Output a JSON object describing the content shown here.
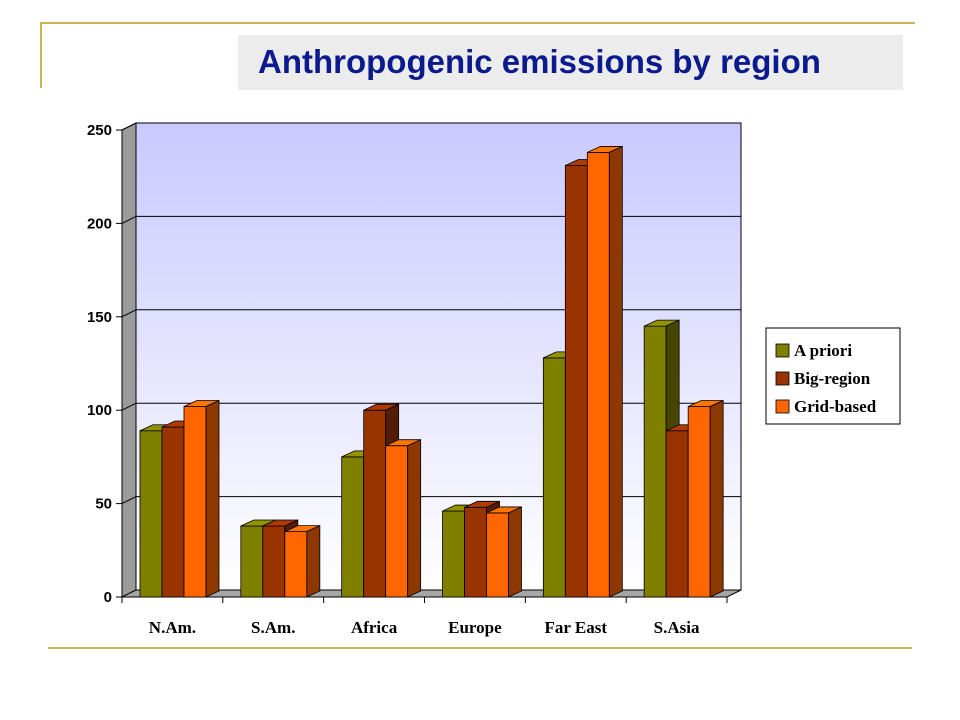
{
  "slide": {
    "title": "Anthropogenic emissions by region"
  },
  "colors": {
    "accent_rule": "#c9b45a",
    "title_text": "#0b1a8c",
    "title_box": "#ececec"
  },
  "chart_data": {
    "type": "bar",
    "style": "3d-clustered",
    "title": "",
    "xlabel": "",
    "ylabel": "",
    "ylim": [
      0,
      250
    ],
    "y_ticks": [
      "0",
      "50",
      "100",
      "150",
      "200",
      "250"
    ],
    "grid": true,
    "legend_position": "right",
    "categories": [
      "N.Am.",
      "S.Am.",
      "Africa",
      "Europe",
      "Far East",
      "S.Asia"
    ],
    "series": [
      {
        "name": "A priori",
        "color": "#808000",
        "values": [
          89,
          38,
          75,
          46,
          128,
          145
        ]
      },
      {
        "name": "Big-region",
        "color": "#993300",
        "values": [
          91,
          38,
          100,
          48,
          231,
          89
        ]
      },
      {
        "name": "Grid-based",
        "color": "#ff6600",
        "values": [
          102,
          35,
          81,
          45,
          238,
          102
        ]
      }
    ]
  }
}
